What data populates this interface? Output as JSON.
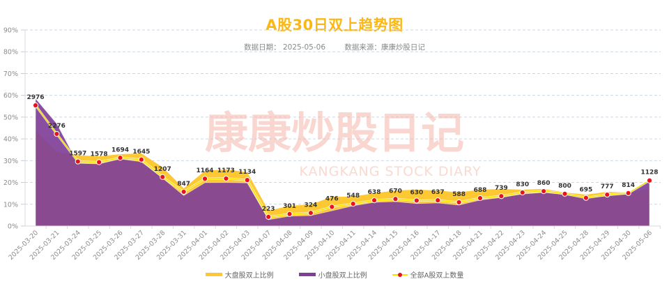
{
  "header": {
    "title": "A股30日双上趋势图",
    "date_label": "数据日期： 2025-05-06",
    "source_label": "数据来源：康康炒股日记"
  },
  "watermark": {
    "cn": "康康炒股日记",
    "en": "KANGKANG STOCK DIARY"
  },
  "legend": {
    "large_cap": "大盘股双上比例",
    "small_cap": "小盘股双上比例",
    "count": "全部A股双上数量"
  },
  "colors": {
    "large_cap_area": "#fdc832",
    "small_cap_area": "#7f3f97",
    "count_line": "#f4e400",
    "count_marker": "#e8141c",
    "title": "#fbb814",
    "grid": "#c9d6ea"
  },
  "chart_data": {
    "type": "area",
    "title": "A股30日双上趋势图",
    "subtitle": "数据日期： 2025-05-06    数据来源：康康炒股日记",
    "xlabel": "",
    "ylabel": "",
    "ylim": [
      0,
      90
    ],
    "yticks": [
      "0%",
      "10%",
      "20%",
      "30%",
      "40%",
      "50%",
      "60%",
      "70%",
      "80%",
      "90%"
    ],
    "grid": true,
    "legend_position": "bottom",
    "categories": [
      "2025-03-20",
      "2025-03-21",
      "2025-03-24",
      "2025-03-25",
      "2025-03-26",
      "2025-03-27",
      "2025-03-28",
      "2025-03-31",
      "2025-04-01",
      "2025-04-02",
      "2025-04-03",
      "2025-04-07",
      "2025-04-08",
      "2025-04-09",
      "2025-04-10",
      "2025-04-11",
      "2025-04-14",
      "2025-04-15",
      "2025-04-16",
      "2025-04-17",
      "2025-04-18",
      "2025-04-21",
      "2025-04-22",
      "2025-04-23",
      "2025-04-24",
      "2025-04-25",
      "2025-04-28",
      "2025-04-29",
      "2025-04-30",
      "2025-05-06"
    ],
    "series": [
      {
        "name": "大盘股双上比例",
        "type": "area",
        "unit": "%",
        "values": [
          44.0,
          34.0,
          32.5,
          32.0,
          33.0,
          33.3,
          27.0,
          17.3,
          25.3,
          26.0,
          24.7,
          7.0,
          9.3,
          9.9,
          13.4,
          13.5,
          15.1,
          16.3,
          16.7,
          16.3,
          15.4,
          16.7,
          17.0,
          16.7,
          17.0,
          15.4,
          14.4,
          15.7,
          15.4,
          17.0
        ]
      },
      {
        "name": "小盘股双上比例",
        "type": "area",
        "unit": "%",
        "values": [
          58.5,
          47.0,
          28.8,
          28.5,
          30.8,
          29.5,
          22.0,
          14.0,
          19.9,
          20.0,
          19.8,
          2.9,
          4.5,
          4.8,
          7.0,
          9.3,
          10.9,
          11.2,
          10.3,
          10.6,
          9.6,
          11.9,
          13.1,
          14.7,
          15.4,
          14.4,
          12.8,
          13.8,
          14.7,
          21.3
        ]
      },
      {
        "name": "全部A股双上数量",
        "type": "line",
        "unit": "%",
        "values": [
          55.4,
          42.3,
          29.6,
          29.3,
          31.3,
          30.5,
          22.5,
          15.7,
          21.7,
          21.8,
          21.1,
          4.2,
          5.5,
          6.0,
          8.8,
          10.2,
          11.8,
          12.4,
          11.7,
          11.8,
          10.9,
          12.8,
          13.7,
          15.4,
          16.0,
          14.8,
          12.9,
          14.4,
          15.1,
          20.9
        ],
        "labels": [
          2976,
          2276,
          1597,
          1578,
          1694,
          1645,
          1207,
          847,
          1164,
          1173,
          1134,
          223,
          301,
          324,
          476,
          548,
          638,
          670,
          630,
          637,
          588,
          688,
          739,
          830,
          860,
          800,
          695,
          777,
          814,
          1128
        ]
      }
    ]
  }
}
